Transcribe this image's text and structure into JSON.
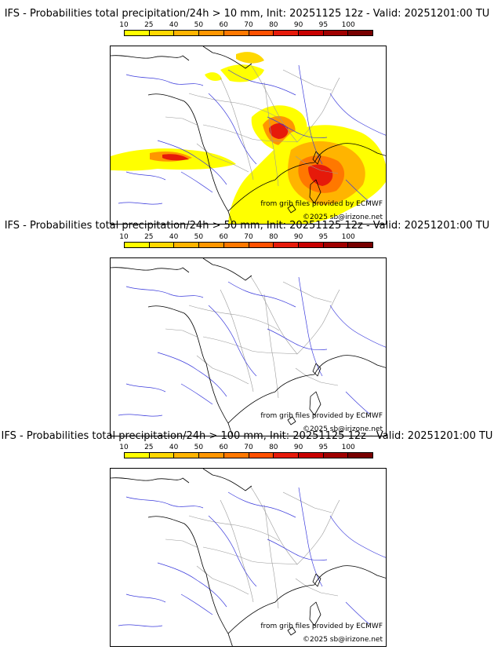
{
  "colorbar": {
    "ticks": [
      "10",
      "25",
      "40",
      "50",
      "60",
      "70",
      "80",
      "90",
      "95",
      "100"
    ],
    "colors": [
      "#ffff00",
      "#ffd800",
      "#ffb400",
      "#ff9600",
      "#ff7800",
      "#ff5000",
      "#e61a0a",
      "#c80000",
      "#a00000",
      "#780000"
    ]
  },
  "panels": [
    {
      "title": "IFS - Probabilities total precipitation/24h > 10 mm, Init: 20251125 12z - Valid: 20251201:00 TU",
      "credit_source": "from grib files provided by ECMWF",
      "credit_copy": "©2025 sb@irizone.net",
      "has_precip": true
    },
    {
      "title": "IFS - Probabilities total precipitation/24h > 50 mm, Init: 20251125 12z - Valid: 20251201:00 TU",
      "credit_source": "from grib files provided by ECMWF",
      "credit_copy": "©2025 sb@irizone.net",
      "has_precip": false
    },
    {
      "title": "IFS - Probabilities total precipitation/24h > 100 mm, Init: 20251125 12z - Valid: 20251201:00 TU",
      "credit_source": "from grib files provided by ECMWF",
      "credit_copy": "©2025 sb@irizone.net",
      "has_precip": false
    }
  ],
  "map_colors": {
    "coast": "#000000",
    "borders": "#999999",
    "rivers": "#3a3adc"
  }
}
